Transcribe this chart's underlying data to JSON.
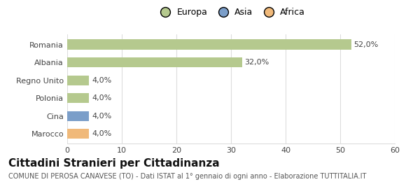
{
  "categories": [
    "Romania",
    "Albania",
    "Regno Unito",
    "Polonia",
    "Cina",
    "Marocco"
  ],
  "values": [
    52.0,
    32.0,
    4.0,
    4.0,
    4.0,
    4.0
  ],
  "colors": [
    "#b5c98e",
    "#b5c98e",
    "#b5c98e",
    "#b5c98e",
    "#7b9ec9",
    "#f0b97a"
  ],
  "labels": [
    "52,0%",
    "32,0%",
    "4,0%",
    "4,0%",
    "4,0%",
    "4,0%"
  ],
  "legend": [
    {
      "label": "Europa",
      "color": "#b5c98e"
    },
    {
      "label": "Asia",
      "color": "#7b9ec9"
    },
    {
      "label": "Africa",
      "color": "#f0b97a"
    }
  ],
  "xlim": [
    0,
    60
  ],
  "xticks": [
    0,
    10,
    20,
    30,
    40,
    50,
    60
  ],
  "title": "Cittadini Stranieri per Cittadinanza",
  "subtitle": "COMUNE DI PEROSA CANAVESE (TO) - Dati ISTAT al 1° gennaio di ogni anno - Elaborazione TUTTITALIA.IT",
  "background_color": "#ffffff",
  "grid_color": "#dddddd",
  "bar_height": 0.55,
  "label_fontsize": 8,
  "tick_fontsize": 8,
  "title_fontsize": 11,
  "subtitle_fontsize": 7
}
